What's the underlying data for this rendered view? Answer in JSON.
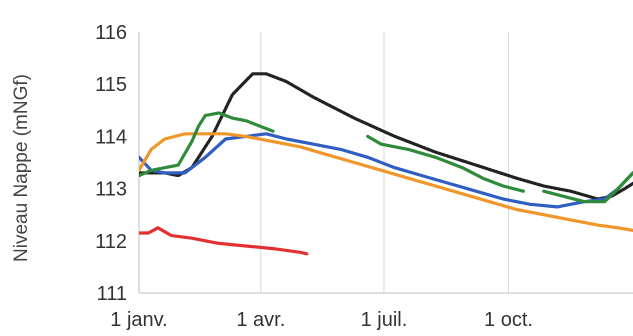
{
  "chart_data": {
    "type": "line",
    "title": "",
    "ylabel": "Niveau Nappe (mNGf)",
    "xlabel": "",
    "ylim": [
      111,
      116
    ],
    "yticks": [
      111,
      112,
      113,
      114,
      115,
      116
    ],
    "xlim": [
      1,
      366
    ],
    "xticks": [
      {
        "day": 1,
        "label": "1 janv."
      },
      {
        "day": 91,
        "label": "1 avr."
      },
      {
        "day": 182,
        "label": "1 juil."
      },
      {
        "day": 274,
        "label": "1 oct."
      }
    ],
    "grid": "vertical",
    "legend": "none",
    "series": [
      {
        "color": "#222222",
        "dashed": true,
        "x": [
          1,
          20,
          30,
          40,
          55,
          70,
          85,
          95,
          110,
          130,
          160,
          190,
          220,
          250,
          280,
          300,
          320,
          340,
          350,
          360,
          366
        ],
        "y": [
          113.3,
          113.3,
          113.25,
          113.4,
          114.0,
          114.8,
          115.2,
          115.2,
          115.05,
          114.75,
          114.35,
          114.0,
          113.7,
          113.45,
          113.2,
          113.05,
          112.95,
          112.8,
          112.85,
          113.0,
          113.1
        ]
      },
      {
        "color": "#2f5ec2",
        "x": [
          1,
          10,
          20,
          35,
          50,
          65,
          80,
          95,
          110,
          130,
          150,
          170,
          190,
          210,
          230,
          250,
          270,
          290,
          310,
          330,
          345,
          355,
          366
        ],
        "y": [
          113.6,
          113.35,
          113.3,
          113.3,
          113.6,
          113.95,
          114.0,
          114.05,
          113.95,
          113.85,
          113.75,
          113.6,
          113.4,
          113.25,
          113.1,
          112.95,
          112.8,
          112.7,
          112.65,
          112.75,
          112.8,
          113.0,
          113.3
        ]
      },
      {
        "color": "#f0962a",
        "x": [
          1,
          10,
          20,
          35,
          50,
          65,
          80,
          100,
          120,
          140,
          160,
          180,
          200,
          220,
          240,
          260,
          280,
          300,
          320,
          340,
          355,
          366
        ],
        "y": [
          113.35,
          113.75,
          113.95,
          114.05,
          114.05,
          114.05,
          114.0,
          113.9,
          113.8,
          113.65,
          113.5,
          113.35,
          113.2,
          113.05,
          112.9,
          112.75,
          112.6,
          112.5,
          112.4,
          112.3,
          112.25,
          112.2
        ]
      },
      {
        "color": "#e33131",
        "x": [
          1,
          8,
          15,
          25,
          40,
          60,
          80,
          100,
          120,
          125
        ],
        "y": [
          112.15,
          112.15,
          112.25,
          112.1,
          112.05,
          111.95,
          111.9,
          111.85,
          111.78,
          111.75
        ]
      },
      {
        "color": "#2e8b3a",
        "dashed": true,
        "x": [
          1,
          10,
          20,
          30,
          40,
          45,
          50,
          60,
          70,
          80,
          90,
          100
        ],
        "y": [
          113.25,
          113.35,
          113.4,
          113.45,
          113.9,
          114.2,
          114.4,
          114.45,
          114.35,
          114.3,
          114.2,
          114.1
        ]
      },
      {
        "color": "#2e8b3a",
        "x": [
          170,
          180,
          200,
          220,
          240,
          255,
          270,
          285
        ],
        "y": [
          114.0,
          113.85,
          113.75,
          113.6,
          113.4,
          113.2,
          113.05,
          112.95
        ]
      },
      {
        "color": "#2e8b3a",
        "x": [
          300,
          315,
          330,
          345,
          355,
          366
        ],
        "y": [
          112.95,
          112.85,
          112.75,
          112.75,
          113.0,
          113.3
        ]
      }
    ]
  }
}
